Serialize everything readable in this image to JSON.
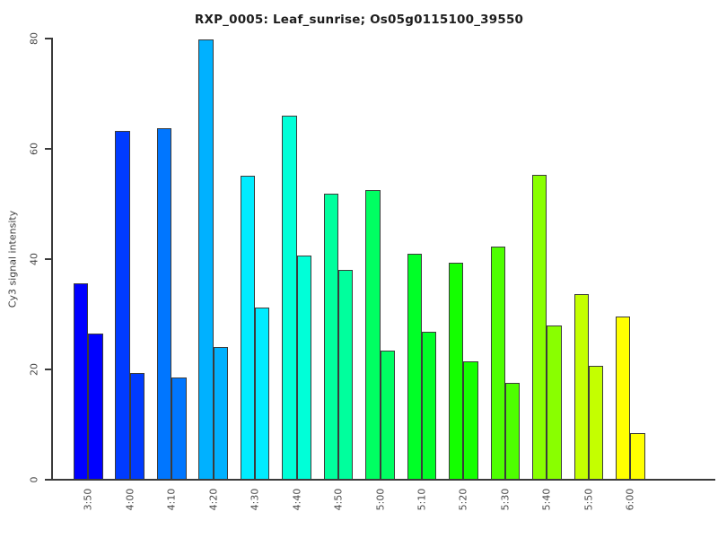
{
  "title": "RXP_0005: Leaf_sunrise; Os05g0115100_39550",
  "chart_data": {
    "type": "bar",
    "title": "RXP_0005: Leaf_sunrise; Os05g0115100_39550",
    "xlabel": "",
    "ylabel": "Cy3 signal intensity",
    "categories": [
      "3:50",
      "4:00",
      "4:10",
      "4:20",
      "4:30",
      "4:40",
      "4:50",
      "5:00",
      "5:10",
      "5:20",
      "5:30",
      "5:40",
      "5:50",
      "6:00"
    ],
    "series": [
      {
        "values": [
          35.6,
          63.3,
          63.7,
          79.8,
          55.1,
          66.0,
          51.8,
          52.5,
          41.0,
          39.3,
          42.2,
          55.3,
          33.6,
          29.6
        ]
      },
      {
        "values": [
          26.5,
          19.4,
          18.6,
          24.1,
          31.3,
          40.7,
          38.0,
          23.4,
          26.9,
          21.4,
          17.6,
          27.9,
          20.7,
          8.5
        ]
      }
    ],
    "bar_colors": [
      "#0000FF",
      "#003BFF",
      "#0076FF",
      "#00B1FF",
      "#00ECFF",
      "#00FFD8",
      "#00FF9D",
      "#00FF62",
      "#00FF27",
      "#14FF00",
      "#4EFF00",
      "#89FF00",
      "#C4FF00",
      "#FFFF00"
    ],
    "bar_border_color": "#3b3b3b",
    "background_color": "#FFFFFF",
    "ylim": [
      0,
      80
    ],
    "yticks": [
      "0",
      "20",
      "40",
      "60",
      "80"
    ],
    "grid": false,
    "legend": "none",
    "x_tick_rotation": -90
  }
}
